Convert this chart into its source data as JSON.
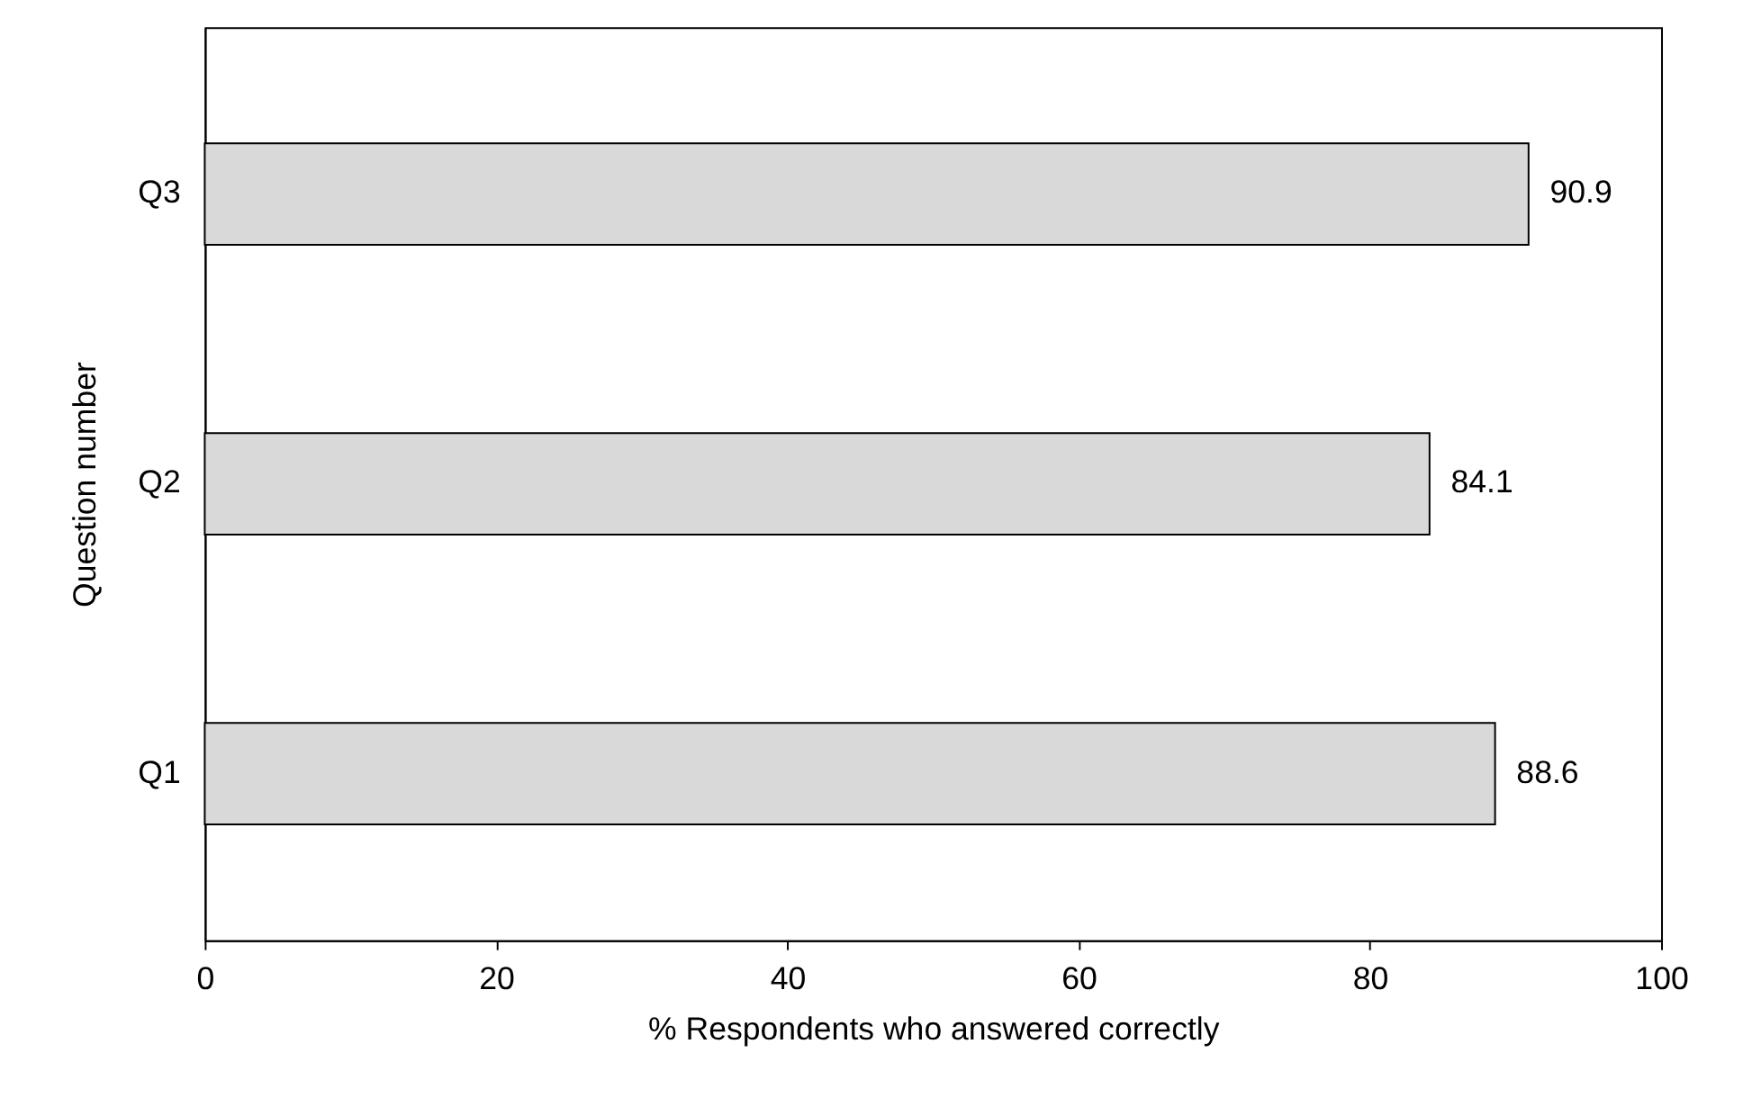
{
  "chart_data": {
    "type": "bar",
    "orientation": "horizontal",
    "categories": [
      "Q3",
      "Q2",
      "Q1"
    ],
    "values": [
      90.9,
      84.1,
      88.6
    ],
    "color": "#d9d9d9",
    "xlabel": "% Respondents who answered correctly",
    "ylabel": "Question number",
    "xlim": [
      0,
      100
    ],
    "xticks": [
      0,
      20,
      40,
      60,
      80,
      100
    ],
    "data_labels": true,
    "grid": false
  }
}
